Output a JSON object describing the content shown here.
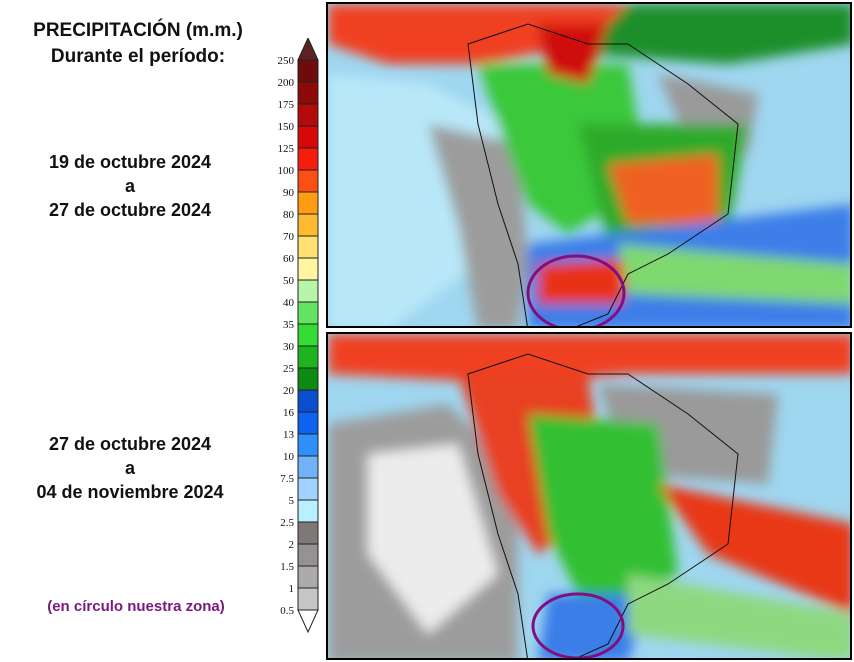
{
  "title_line1": "PRECIPITACIÓN (m.m.)",
  "title_line2": "Durante el período:",
  "periods": [
    {
      "start": "19 de octubre 2024",
      "sep": "a",
      "end": "27 de octubre 2024"
    },
    {
      "start": "27 de octubre 2024",
      "sep": "a",
      "end": "04 de noviembre 2024"
    }
  ],
  "note": "(en círculo nuestra zona)",
  "colorbar": {
    "unit": "m.m.",
    "labels": [
      "250",
      "200",
      "175",
      "150",
      "125",
      "100",
      "90",
      "80",
      "70",
      "60",
      "50",
      "40",
      "35",
      "30",
      "25",
      "20",
      "16",
      "13",
      "10",
      "7.5",
      "5",
      "2.5",
      "2",
      "1.5",
      "1",
      "0.5"
    ],
    "colors": [
      "#6e0c0c",
      "#8c0a0a",
      "#b40a0a",
      "#d80808",
      "#f51e0e",
      "#fb5014",
      "#ff9c12",
      "#ffbb30",
      "#ffe070",
      "#fff6a2",
      "#b8f5a8",
      "#62e462",
      "#34dc34",
      "#1eb41e",
      "#0c8c12",
      "#0a4ed0",
      "#0e62f0",
      "#2e90f8",
      "#72b2f8",
      "#a2d2ff",
      "#b8f0ff",
      "#7e7878",
      "#969292",
      "#acaaaa",
      "#c6c6c6"
    ],
    "over_color": "#5a2222",
    "under_color": "#ffffff"
  },
  "highlight_color": "#80107e"
}
